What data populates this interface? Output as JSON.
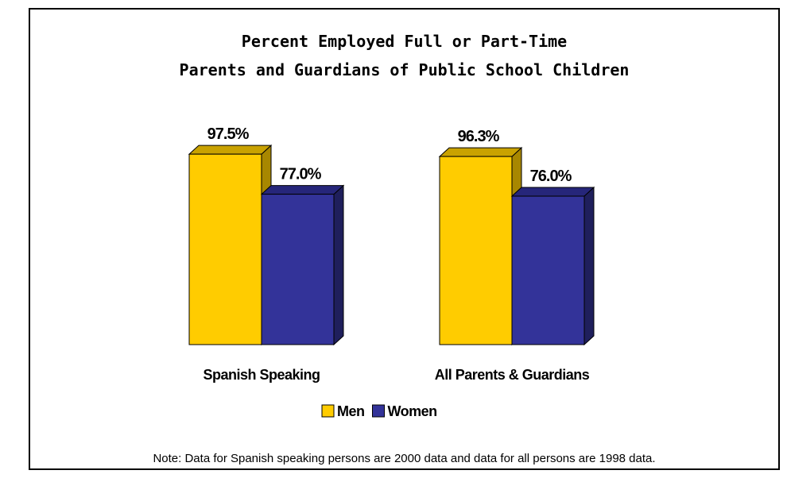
{
  "title": {
    "line1": "Percent Employed Full or Part-Time",
    "line2": "Parents and Guardians of Public School Children"
  },
  "note": "Note: Data for Spanish speaking persons are 2000 data and data for all persons are 1998 data.",
  "colors": {
    "men": "#FFCC00",
    "men_side": "#A88700",
    "men_top": "#C9A200",
    "women": "#333399",
    "women_side": "#1F1F5C",
    "women_top": "#26267A"
  },
  "chart_data": {
    "type": "bar",
    "categories": [
      "Spanish Speaking",
      "All Parents & Guardians"
    ],
    "series": [
      {
        "name": "Men",
        "values": [
          97.5,
          96.3
        ],
        "labels": [
          "97.5%",
          "96.3%"
        ]
      },
      {
        "name": "Women",
        "values": [
          77.0,
          76.0
        ],
        "labels": [
          "77.0%",
          "76.0%"
        ]
      }
    ],
    "ylim": [
      0,
      100
    ],
    "grid": false,
    "legend": "bottom-center",
    "bar_style": "3d"
  }
}
